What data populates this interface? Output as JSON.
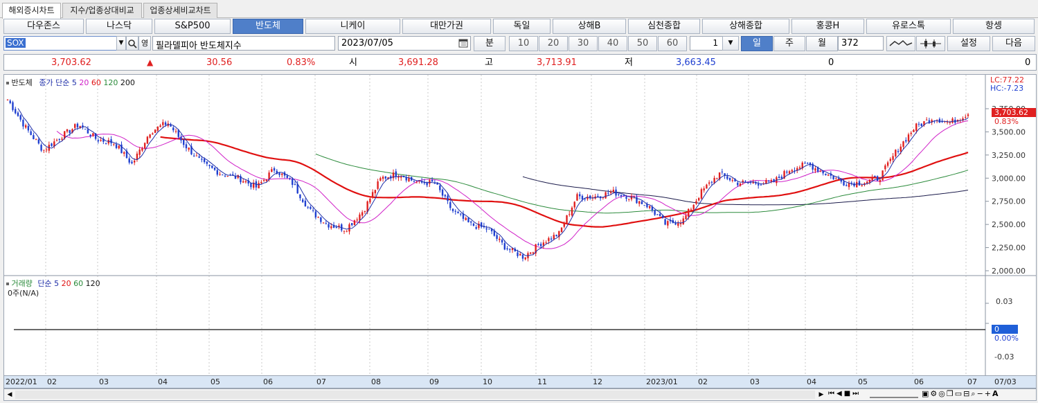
{
  "tabs": [
    "해외증시차트",
    "지수/업종상대비교",
    "업종상세비교차트"
  ],
  "markets": [
    "다우존스",
    "나스닥",
    "S&P500",
    "반도체",
    "니케이",
    "대만가권",
    "독일",
    "상해B",
    "심천종합",
    "상해종합",
    "홍콩H",
    "유로스톡",
    "항셍"
  ],
  "selected_market": "반도체",
  "toolbar": {
    "symbol": "SOX",
    "eng_label": "영",
    "name": "필라델피아 반도체지수",
    "date": "2023/07/05",
    "min_label": "분",
    "intervals": [
      "10",
      "20",
      "30",
      "40",
      "50",
      "60"
    ],
    "multiplier": "1",
    "periods": [
      "일",
      "주",
      "월"
    ],
    "selected_period": "일",
    "count": "372",
    "settings_label": "설정",
    "next_label": "다음"
  },
  "quote": {
    "price": "3,703.62",
    "change_arrow": "▲",
    "change": "30.56",
    "change_pct": "0.83%",
    "open_label": "시",
    "open": "3,691.28",
    "high_label": "고",
    "high": "3,713.91",
    "low_label": "저",
    "low": "3,663.45",
    "volume": "0",
    "amount": "0"
  },
  "price_panel": {
    "legend": {
      "name": "반도체",
      "type": "종가 단순",
      "ma": [
        "5",
        "20",
        "60",
        "120",
        "200"
      ]
    },
    "lc_label": "LC:77.22",
    "hc_label": "HC:-7.23",
    "last_price": "3,703.62",
    "last_pct": "0.83%",
    "y_ticks": [
      "3,750.00",
      "3,500.00",
      "3,250.00",
      "3,000.00",
      "2,750.00",
      "2,500.00",
      "2,250.00",
      "2,000.00"
    ]
  },
  "volume_panel": {
    "legend": {
      "name": "거래량",
      "type": "단순",
      "ma": [
        "5",
        "20",
        "60",
        "120"
      ]
    },
    "sub": "0주(N/A)",
    "y_ticks": [
      "0.03",
      "0.00%",
      "-0.03"
    ],
    "current": "0"
  },
  "x_axis": [
    "2022/01",
    "02",
    "03",
    "04",
    "05",
    "06",
    "07",
    "08",
    "09",
    "10",
    "11",
    "12",
    "2023/01",
    "02",
    "03",
    "04",
    "05",
    "06",
    "07"
  ],
  "x_end_label": "07/03",
  "colors": {
    "up": "#e02020",
    "down": "#1f3fd0",
    "ma5": "#1f2fa8",
    "ma20": "#d020c8",
    "ma60": "#e01010",
    "ma120": "#2a8a3a",
    "ma200": "#1a1a4a",
    "accent": "#4f7fc9"
  },
  "chart_data": {
    "type": "line",
    "title": "반도체",
    "series": [
      {
        "name": "종가",
        "values": [
          3850,
          3550,
          3300,
          3450,
          3580,
          3420,
          3380,
          3150,
          3500,
          3600,
          3350,
          3150,
          3050,
          3000,
          2900,
          3100,
          2950,
          2650,
          2500,
          2450,
          2650,
          3000,
          3050,
          2950,
          2950,
          2650,
          2500,
          2450,
          2250,
          2150,
          2300,
          2400,
          2800,
          2800,
          2850,
          2800,
          2700,
          2500,
          2550,
          2850,
          3050,
          2950,
          2950,
          2950,
          3100,
          3150,
          3050,
          2950,
          2950,
          3000,
          3300,
          3550,
          3650,
          3600,
          3700
        ]
      },
      {
        "name": "200",
        "values": [
          2780,
          2790,
          2800,
          2820,
          2840,
          2860,
          2880,
          2890
        ]
      }
    ],
    "ylim": [
      2000,
      3800
    ]
  }
}
